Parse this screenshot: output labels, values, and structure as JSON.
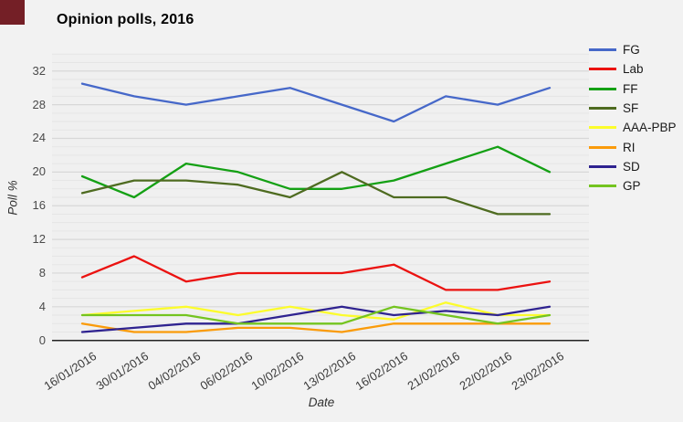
{
  "page": {
    "background": "#f2f2f2",
    "corner_square_color": "#741f26"
  },
  "chart_data": {
    "type": "line",
    "title": "Opinion polls, 2016",
    "xlabel": "Date",
    "ylabel": "Poll %",
    "x_tick_labels": [
      "16/01/2016",
      "30/01/2016",
      "04/02/2016",
      "06/02/2016",
      "10/02/2016",
      "13/02/2016",
      "16/02/2016",
      "21/02/2016",
      "22/02/2016",
      "23/02/2016"
    ],
    "y_ticks": [
      0,
      4,
      8,
      12,
      16,
      20,
      24,
      28,
      32
    ],
    "ylim": [
      0,
      34
    ],
    "grid": "horizontal, minor every 1, major every 4",
    "legend_position": "right",
    "series": [
      {
        "name": "FG",
        "color": "#4668c9",
        "values": [
          30.5,
          29,
          28,
          29,
          30,
          28,
          26,
          29,
          28,
          30
        ]
      },
      {
        "name": "Lab",
        "color": "#eb1210",
        "values": [
          7.5,
          10,
          7,
          8,
          8,
          8,
          9,
          6,
          6,
          7
        ]
      },
      {
        "name": "FF",
        "color": "#14a014",
        "values": [
          19.5,
          17,
          21,
          20,
          18,
          18,
          19,
          21,
          23,
          20
        ]
      },
      {
        "name": "SF",
        "color": "#4e6b20",
        "values": [
          17.5,
          19,
          19,
          18.5,
          17,
          20,
          17,
          17,
          15,
          15
        ]
      },
      {
        "name": "AAA-PBP",
        "color": "#fcfc2c",
        "values": [
          3,
          3.5,
          4,
          3,
          4,
          3,
          2.5,
          4.5,
          3,
          3
        ]
      },
      {
        "name": "RI",
        "color": "#fa9b0a",
        "values": [
          2,
          1,
          1,
          1.5,
          1.5,
          1,
          2,
          2,
          2,
          2
        ]
      },
      {
        "name": "SD",
        "color": "#2f2390",
        "values": [
          1,
          1.5,
          2,
          2,
          3,
          4,
          3,
          3.5,
          3,
          4
        ]
      },
      {
        "name": "GP",
        "color": "#74c420",
        "values": [
          3,
          3,
          3,
          2,
          2,
          2,
          4,
          3,
          2,
          3
        ]
      }
    ]
  }
}
